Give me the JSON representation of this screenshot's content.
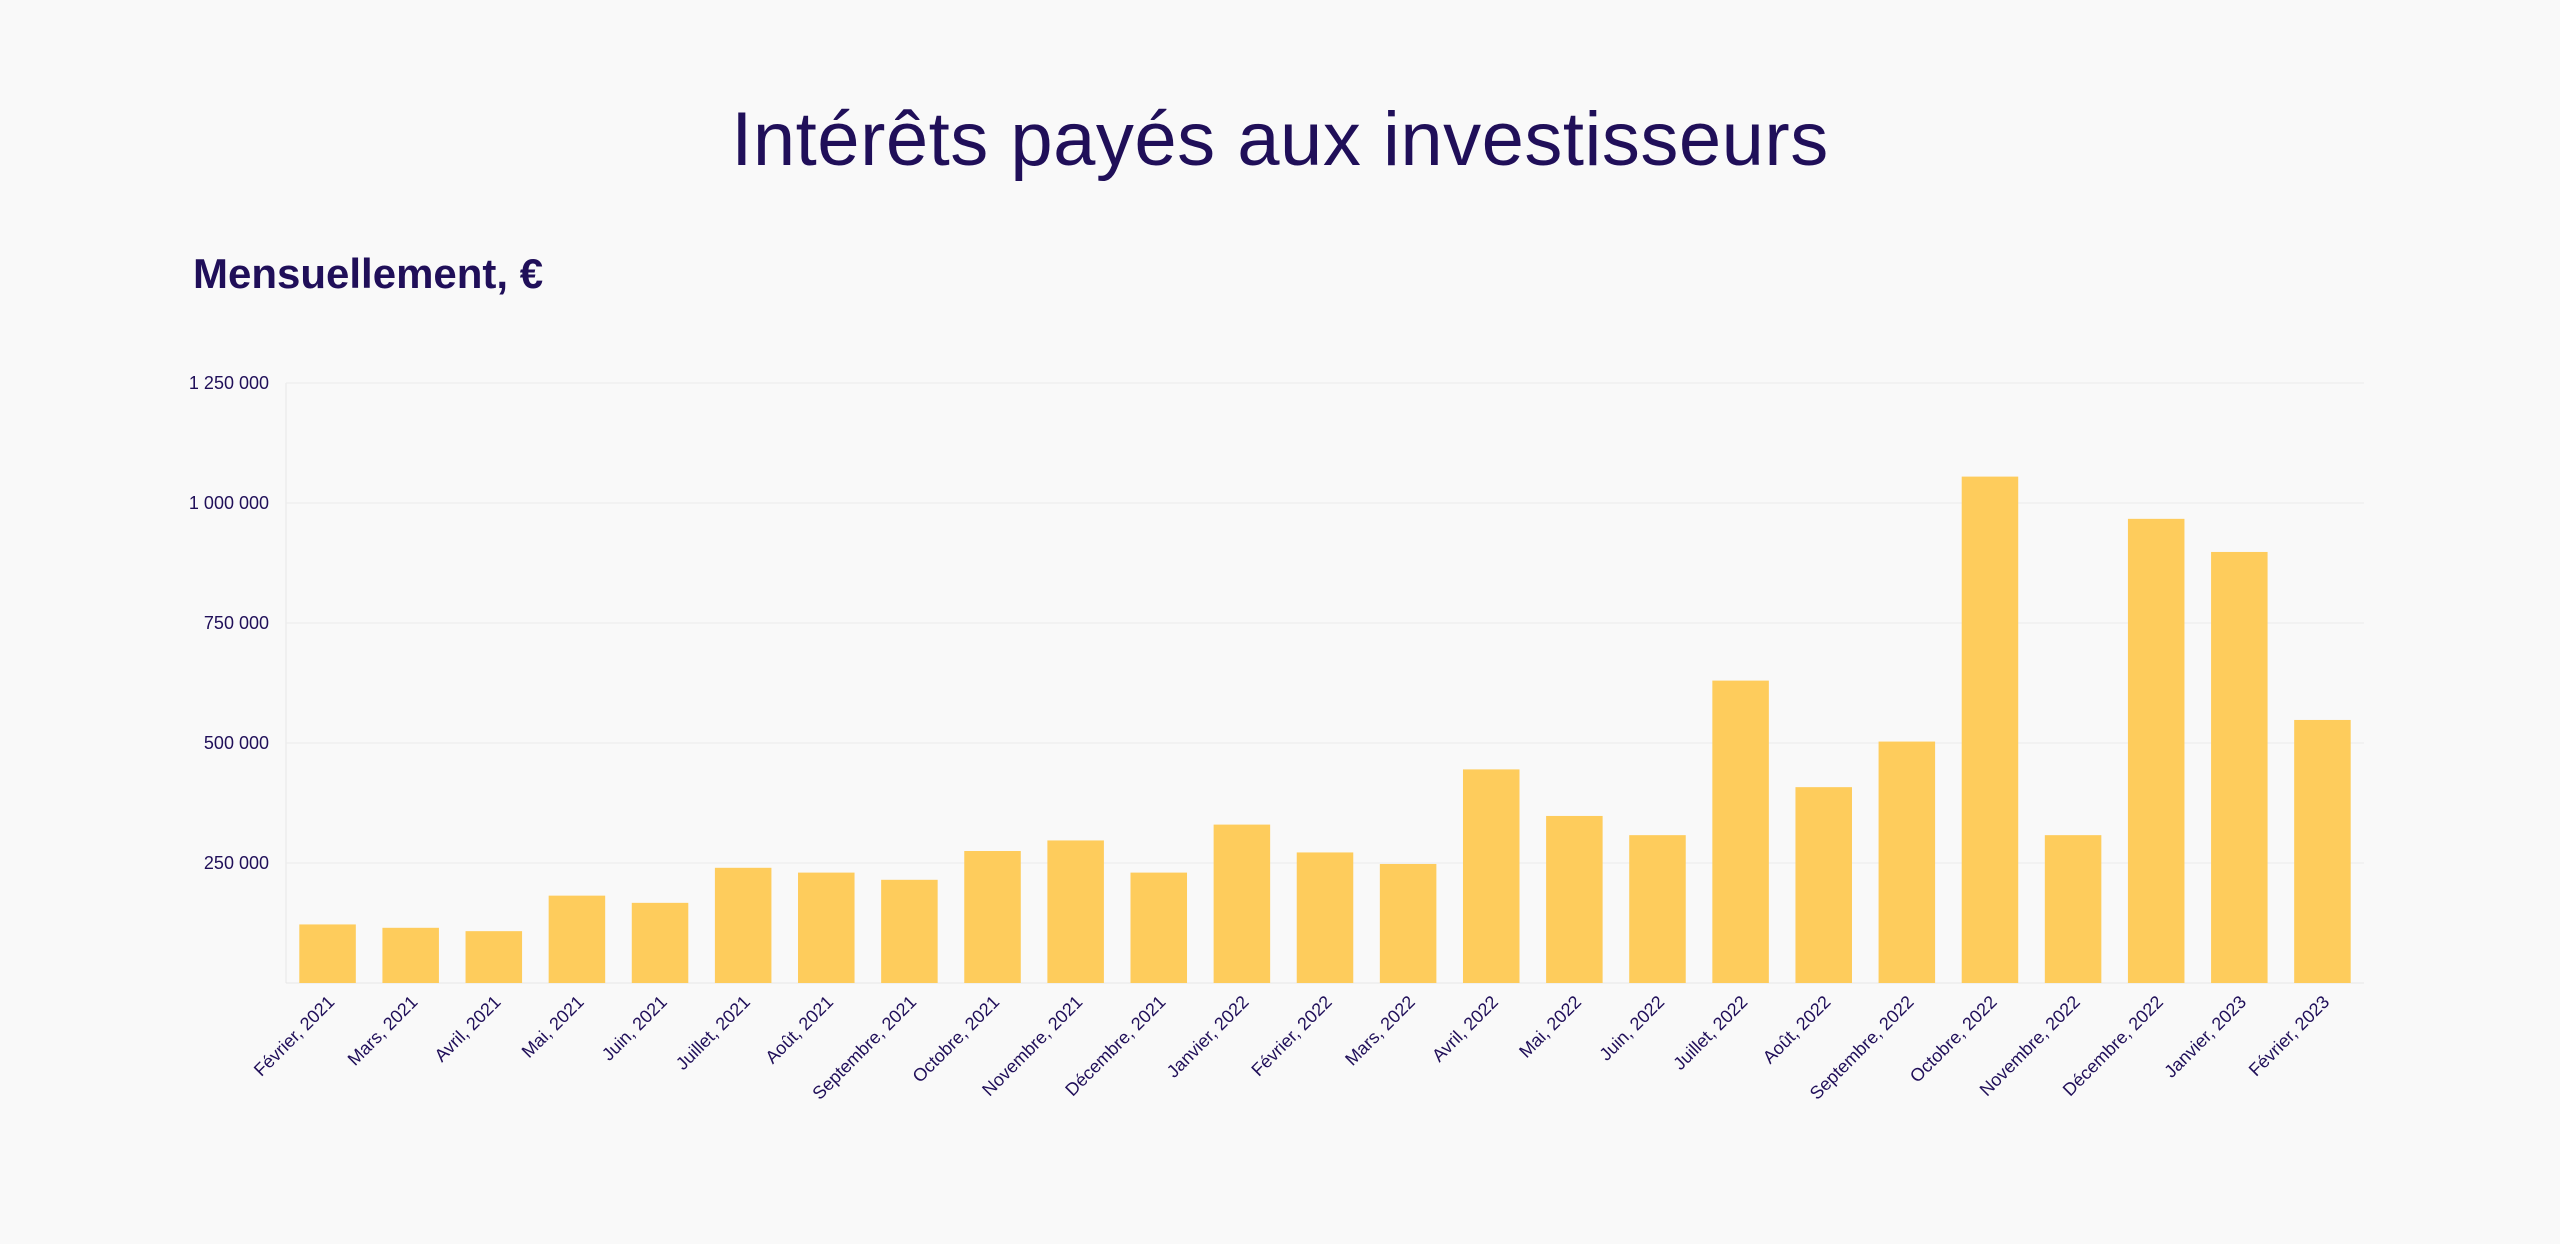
{
  "header": {
    "title": "Intérêts payés aux investisseurs",
    "subtitle": "Mensuellement, €"
  },
  "colors": {
    "bar": "#fecc5c",
    "text": "#200f59",
    "background": "#f9f9f9",
    "grid": "#ececec"
  },
  "chart_data": {
    "type": "bar",
    "title": "Intérêts payés aux investisseurs",
    "subtitle": "Mensuellement, €",
    "xlabel": "",
    "ylabel": "",
    "ylim": [
      0,
      1250000
    ],
    "grid": true,
    "legend": "none",
    "y_ticks": [
      {
        "value": 250000,
        "label": "250 000"
      },
      {
        "value": 500000,
        "label": "500 000"
      },
      {
        "value": 750000,
        "label": "750 000"
      },
      {
        "value": 1000000,
        "label": "1 000 000"
      },
      {
        "value": 1250000,
        "label": "1 250 000"
      }
    ],
    "categories": [
      "Février, 2021",
      "Mars, 2021",
      "Avril, 2021",
      "Mai, 2021",
      "Juin, 2021",
      "Juillet, 2021",
      "Août, 2021",
      "Septembre, 2021",
      "Octobre, 2021",
      "Novembre, 2021",
      "Décembre, 2021",
      "Janvier, 2022",
      "Février, 2022",
      "Mars, 2022",
      "Avril, 2022",
      "Mai, 2022",
      "Juin, 2022",
      "Juillet, 2022",
      "Août, 2022",
      "Septembre, 2022",
      "Octobre, 2022",
      "Novembre, 2022",
      "Décembre, 2022",
      "Janvier, 2023",
      "Février, 2023"
    ],
    "values": [
      122000,
      115000,
      108000,
      182000,
      167000,
      240000,
      230000,
      215000,
      275000,
      297000,
      230000,
      330000,
      272000,
      248000,
      445000,
      348000,
      308000,
      630000,
      408000,
      503000,
      1055000,
      308000,
      967000,
      898000,
      548000
    ]
  }
}
